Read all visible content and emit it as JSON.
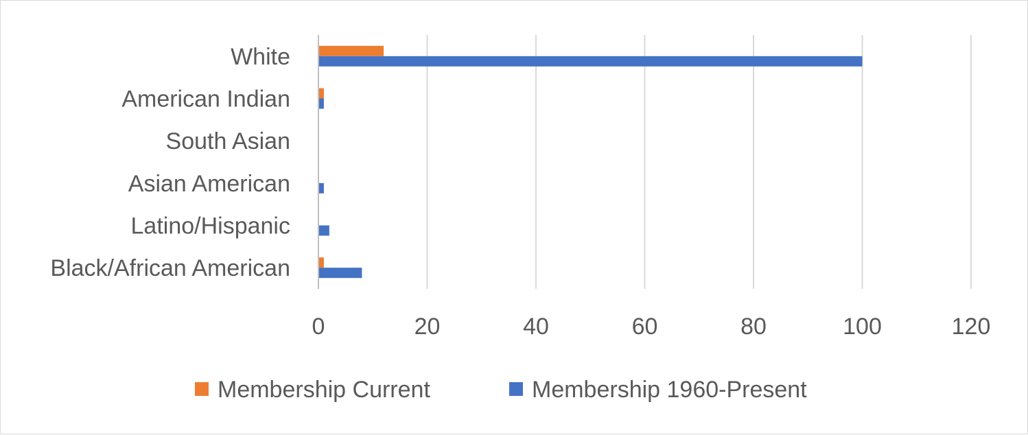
{
  "chart_data": {
    "type": "bar",
    "orientation": "horizontal",
    "categories": [
      "Black/African American",
      "Latino/Hispanic",
      "Asian American",
      "South Asian",
      "American Indian",
      "White"
    ],
    "series": [
      {
        "name": "Membership Current",
        "color": "#ED7D31",
        "values": [
          1,
          0,
          0,
          0,
          1,
          12
        ]
      },
      {
        "name": "Membership 1960-Present",
        "color": "#4472C4",
        "values": [
          8,
          2,
          1,
          0,
          1,
          100
        ]
      }
    ],
    "xlim": [
      0,
      120
    ],
    "x_ticks": [
      "0",
      "20",
      "40",
      "60",
      "80",
      "100",
      "120"
    ],
    "grid": true,
    "legend_position": "bottom",
    "title": "",
    "xlabel": "",
    "ylabel": ""
  }
}
